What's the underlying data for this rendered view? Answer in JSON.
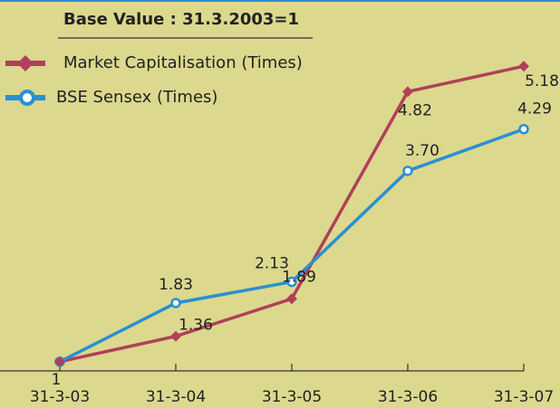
{
  "chart_data": {
    "type": "line",
    "title": "Base Value : 31.3.2003=1",
    "categories": [
      "31-3-03",
      "31-3-04",
      "31-3-05",
      "31-3-06",
      "31-3-07"
    ],
    "series": [
      {
        "name": "Market Capitalisation (Times)",
        "color": "#b0405a",
        "marker": "diamond",
        "values": [
          1,
          1.36,
          1.89,
          4.82,
          5.18
        ]
      },
      {
        "name": "BSE Sensex (Times)",
        "color": "#2a8fd2",
        "marker": "circle",
        "values": [
          1,
          1.83,
          2.13,
          3.7,
          4.29
        ],
        "value_labels": [
          "1",
          "1.83",
          "2.13",
          "3.70",
          "4.29"
        ]
      }
    ],
    "ylim": [
      0.87,
      5.4
    ],
    "grid": false
  }
}
